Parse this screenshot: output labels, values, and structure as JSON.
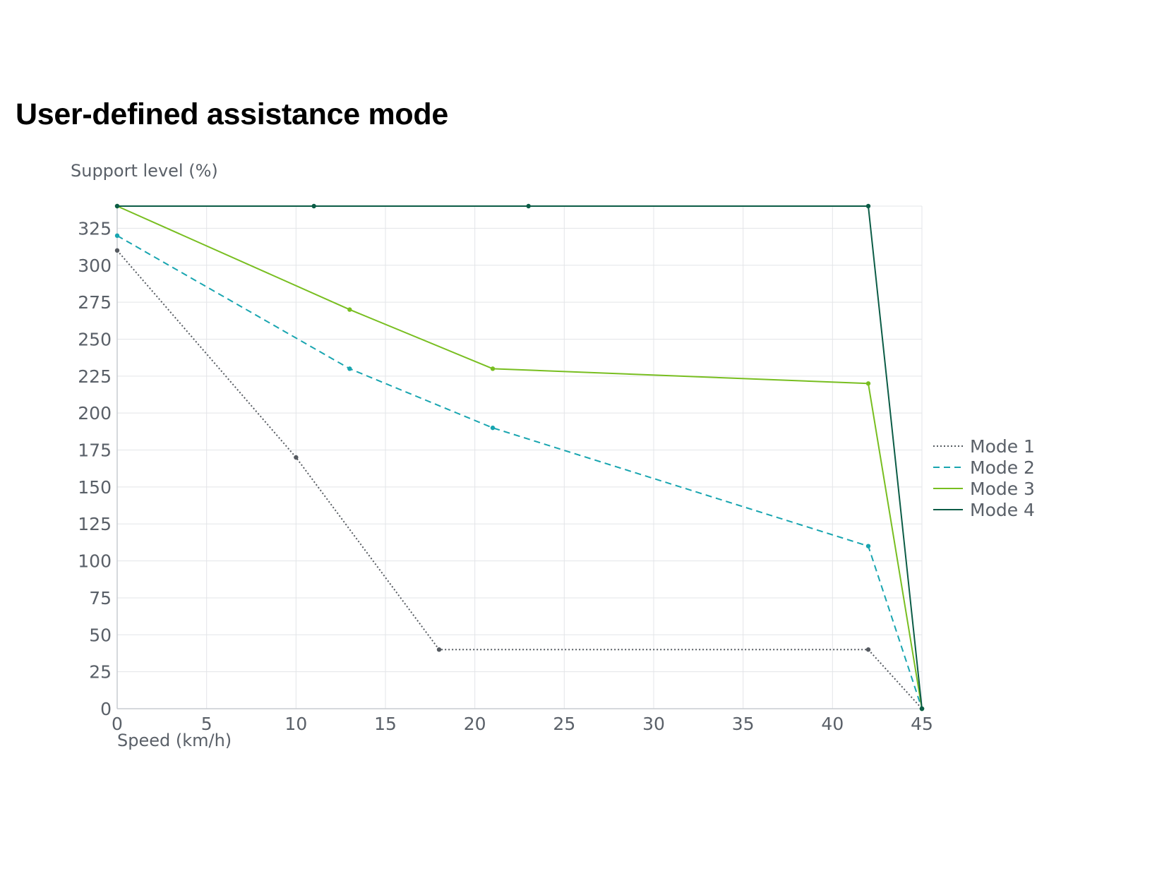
{
  "title": "User-defined assistance mode",
  "chart_data": {
    "type": "line",
    "title": "User-defined assistance mode",
    "ylabel": "Support level (%)",
    "xlabel": "Speed (km/h)",
    "xlim": [
      0,
      45
    ],
    "ylim": [
      0,
      340
    ],
    "xticks": [
      0,
      5,
      10,
      15,
      20,
      25,
      30,
      35,
      40,
      45
    ],
    "yticks": [
      0,
      25,
      50,
      75,
      100,
      125,
      150,
      175,
      200,
      225,
      250,
      275,
      300,
      325
    ],
    "grid": true,
    "legend_position": "right",
    "series": [
      {
        "name": "Mode 1",
        "color": "#555a60",
        "style": "dotted",
        "points": [
          [
            0,
            310
          ],
          [
            10,
            170
          ],
          [
            18,
            40
          ],
          [
            42,
            40
          ],
          [
            45,
            0
          ]
        ]
      },
      {
        "name": "Mode 2",
        "color": "#18a5b0",
        "style": "dashed",
        "points": [
          [
            0,
            320
          ],
          [
            13,
            230
          ],
          [
            21,
            190
          ],
          [
            42,
            110
          ],
          [
            45,
            0
          ]
        ]
      },
      {
        "name": "Mode 3",
        "color": "#78be20",
        "style": "solid",
        "points": [
          [
            0,
            340
          ],
          [
            13,
            270
          ],
          [
            21,
            230
          ],
          [
            42,
            220
          ],
          [
            45,
            0
          ]
        ]
      },
      {
        "name": "Mode 4",
        "color": "#0b5c46",
        "style": "solid",
        "points": [
          [
            0,
            340
          ],
          [
            11,
            340
          ],
          [
            23,
            340
          ],
          [
            42,
            340
          ],
          [
            45,
            0
          ]
        ]
      }
    ]
  }
}
